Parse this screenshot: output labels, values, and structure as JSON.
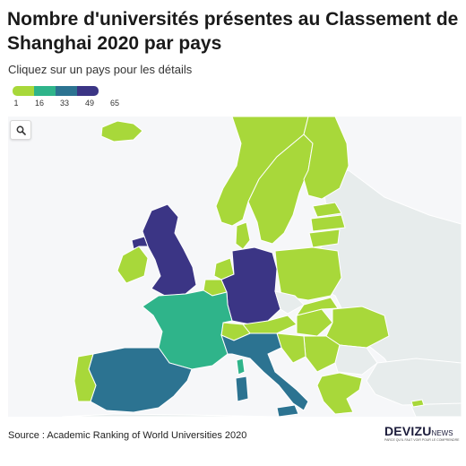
{
  "title": "Nombre d'universités présentes au Classement de Shanghai 2020 par pays",
  "subtitle": "Cliquez sur un pays pour les détails",
  "legend": {
    "stops": [
      "1",
      "16",
      "33",
      "49",
      "65"
    ],
    "colors": [
      "#a8d83a",
      "#2fb48a",
      "#2c7391",
      "#3b3585"
    ]
  },
  "source": "Source : Academic Ranking of World Universities 2020",
  "logo": {
    "main": "DEVIZU",
    "suffix": "NEWS",
    "tagline": "PARCE QU'IL FAUT VOIR POUR LE COMPRENDRE"
  },
  "icons": {
    "zoom": "search-icon"
  },
  "colors": {
    "low": "#a8d83a",
    "mid_low": "#2fb48a",
    "mid_high": "#2c7391",
    "high": "#3b3585",
    "no_data": "#e7ecec",
    "sea": "#f6f7f9"
  }
}
